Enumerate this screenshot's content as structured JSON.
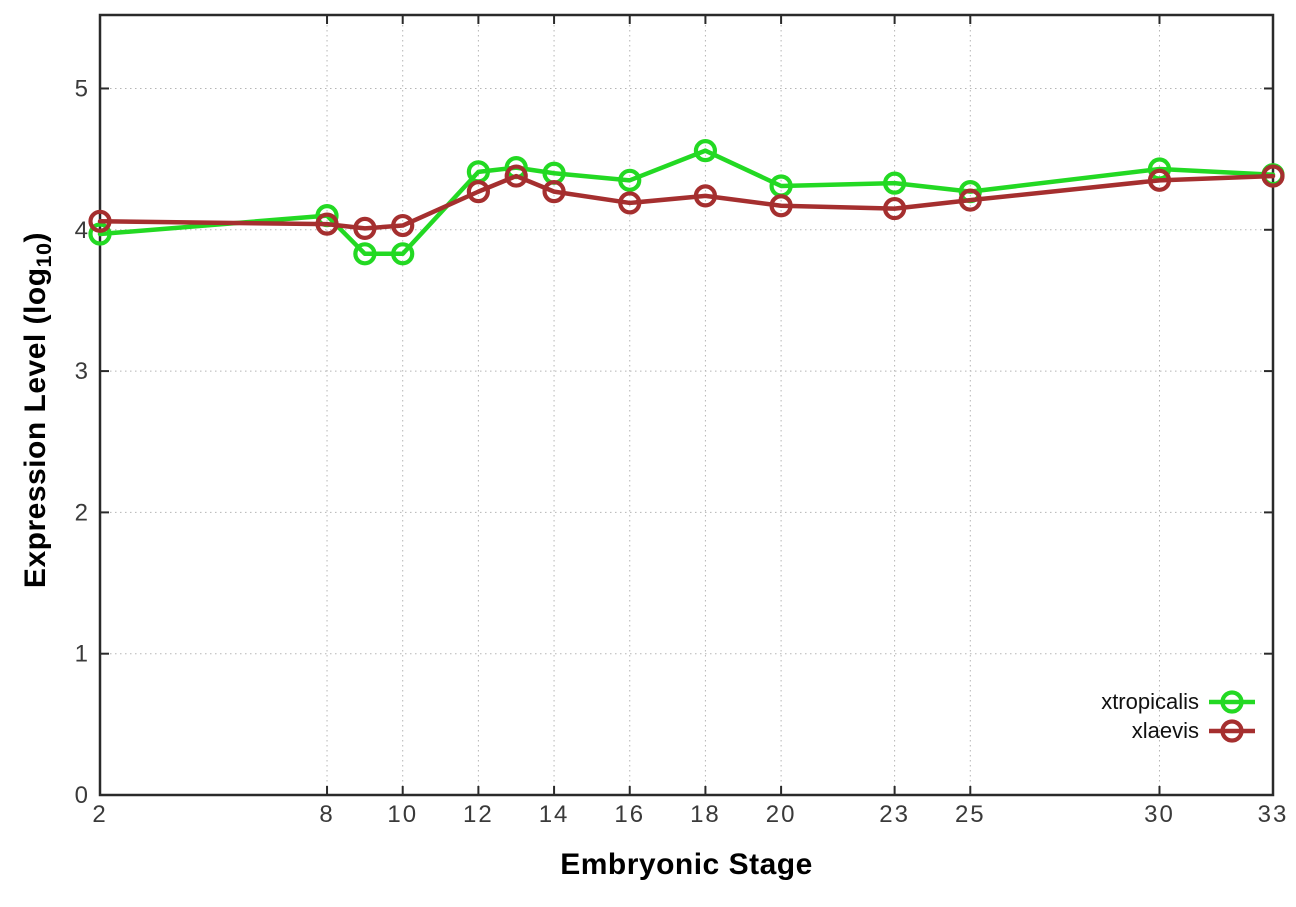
{
  "page": {
    "background": "#ffffff"
  },
  "chart_data": {
    "type": "line",
    "title": "",
    "xlabel": "Embryonic Stage",
    "ylabel": "Expression Level (log10)",
    "ylabel_parts": {
      "prefix": "Expression Level (log",
      "sub": "10",
      "suffix": ")"
    },
    "x": [
      2,
      8,
      9,
      10,
      12,
      13,
      14,
      16,
      18,
      20,
      23,
      25,
      30,
      33
    ],
    "x_tick_labels": [
      "2",
      "8",
      "10",
      "12",
      "14",
      "16",
      "18",
      "20",
      "23",
      "25",
      "30",
      "33"
    ],
    "y_tick_labels": [
      "0",
      "1",
      "2",
      "3",
      "4",
      "5"
    ],
    "xlim": [
      2,
      33
    ],
    "ylim": [
      0,
      5.52
    ],
    "grid": true,
    "legend_position": "inside-bottom-right",
    "series": [
      {
        "name": "xtropicalis",
        "color": "#23d923",
        "values": [
          3.97,
          4.1,
          3.83,
          3.83,
          4.41,
          4.44,
          4.4,
          4.35,
          4.56,
          4.31,
          4.33,
          4.27,
          4.43,
          4.39
        ]
      },
      {
        "name": "xlaevis",
        "color": "#a52f2f",
        "values": [
          4.06,
          4.04,
          4.01,
          4.03,
          4.27,
          4.38,
          4.27,
          4.19,
          4.24,
          4.17,
          4.15,
          4.21,
          4.35,
          4.38
        ]
      }
    ],
    "style": {
      "axis_color": "#2a2a2a",
      "grid_color": "#b5b5b5",
      "tick_label_color": "#3a3a3a"
    }
  }
}
